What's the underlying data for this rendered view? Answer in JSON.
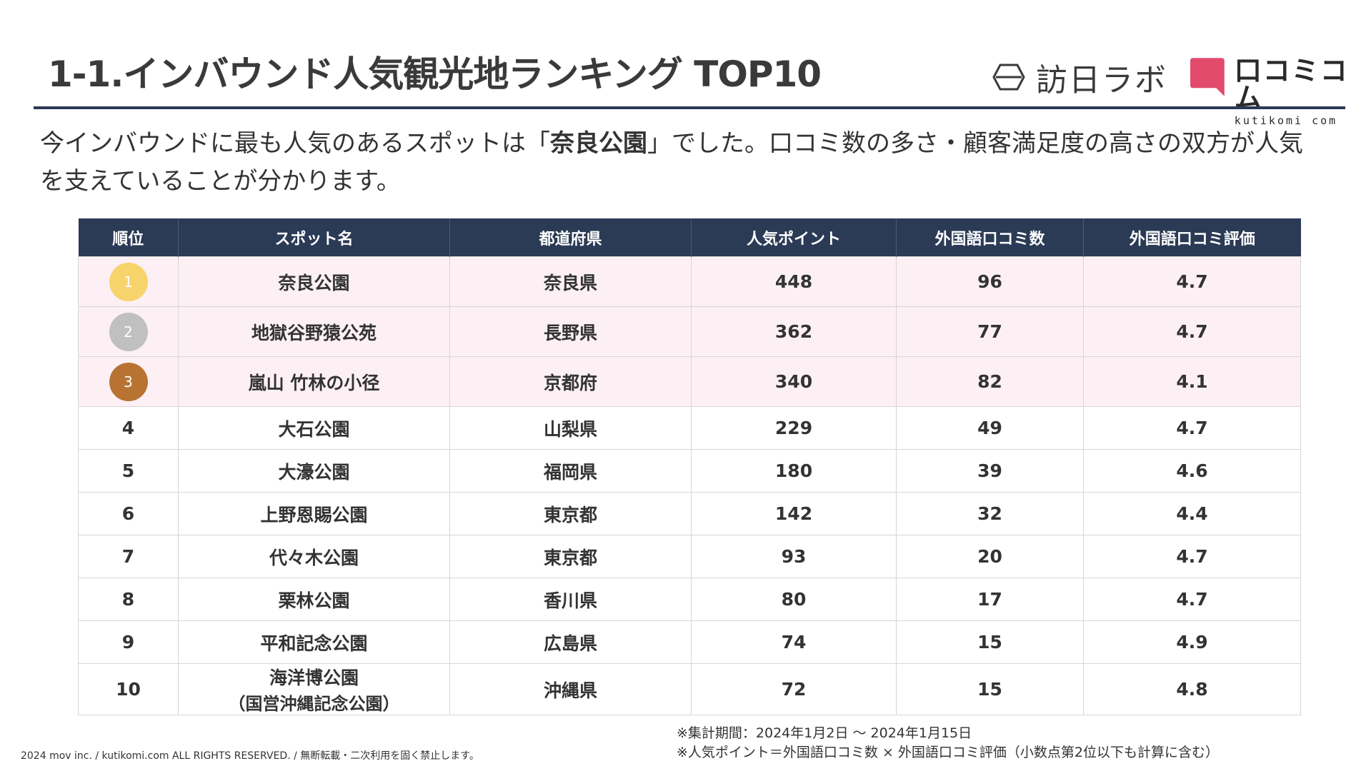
{
  "header": {
    "title": "1-1.インバウンド人気観光地ランキング TOP10",
    "logo_houjin": "訪日ラボ",
    "logo_kuti_jp": "口コミコム",
    "logo_kuti_en": "kutikomi com"
  },
  "lead": {
    "before": "今インバウンドに最も人気のあるスポットは「",
    "highlight": "奈良公園",
    "after": "」でした。口コミ数の多さ・顧客満足度の高さの双方が人気を支えていることが分かります。"
  },
  "table": {
    "headers": [
      "順位",
      "スポット名",
      "都道府県",
      "人気ポイント",
      "外国語口コミ数",
      "外国語口コミ評価"
    ],
    "rows": [
      {
        "rank": "1",
        "spot": "奈良公園",
        "spot_sub": "",
        "pref": "奈良県",
        "points": "448",
        "reviews": "96",
        "rating": "4.7"
      },
      {
        "rank": "2",
        "spot": "地獄谷野猿公苑",
        "spot_sub": "",
        "pref": "長野県",
        "points": "362",
        "reviews": "77",
        "rating": "4.7"
      },
      {
        "rank": "3",
        "spot": "嵐山 竹林の小径",
        "spot_sub": "",
        "pref": "京都府",
        "points": "340",
        "reviews": "82",
        "rating": "4.1"
      },
      {
        "rank": "4",
        "spot": "大石公園",
        "spot_sub": "",
        "pref": "山梨県",
        "points": "229",
        "reviews": "49",
        "rating": "4.7"
      },
      {
        "rank": "5",
        "spot": "大濠公園",
        "spot_sub": "",
        "pref": "福岡県",
        "points": "180",
        "reviews": "39",
        "rating": "4.6"
      },
      {
        "rank": "6",
        "spot": "上野恩賜公園",
        "spot_sub": "",
        "pref": "東京都",
        "points": "142",
        "reviews": "32",
        "rating": "4.4"
      },
      {
        "rank": "7",
        "spot": "代々木公園",
        "spot_sub": "",
        "pref": "東京都",
        "points": "93",
        "reviews": "20",
        "rating": "4.7"
      },
      {
        "rank": "8",
        "spot": "栗林公園",
        "spot_sub": "",
        "pref": "香川県",
        "points": "80",
        "reviews": "17",
        "rating": "4.7"
      },
      {
        "rank": "9",
        "spot": "平和記念公園",
        "spot_sub": "",
        "pref": "広島県",
        "points": "74",
        "reviews": "15",
        "rating": "4.9"
      },
      {
        "rank": "10",
        "spot": "海洋博公園",
        "spot_sub": "（国営沖縄記念公園）",
        "pref": "沖縄県",
        "points": "72",
        "reviews": "15",
        "rating": "4.8"
      }
    ],
    "medal_colors": {
      "1": "#f7d36b",
      "2": "#c0c0c0",
      "3": "#b87333"
    }
  },
  "footer": {
    "copyright": "2024 mov inc. / kutikomi.com ALL RIGHTS RESERVED. / 無断転載・二次利用を固く禁止します。",
    "note1": "※集計期間：2024年1月2日 〜 2024年1月15日",
    "note2": "※人気ポイント＝外国語口コミ数 × 外国語口コミ評価（小数点第2位以下も計算に含む）"
  }
}
